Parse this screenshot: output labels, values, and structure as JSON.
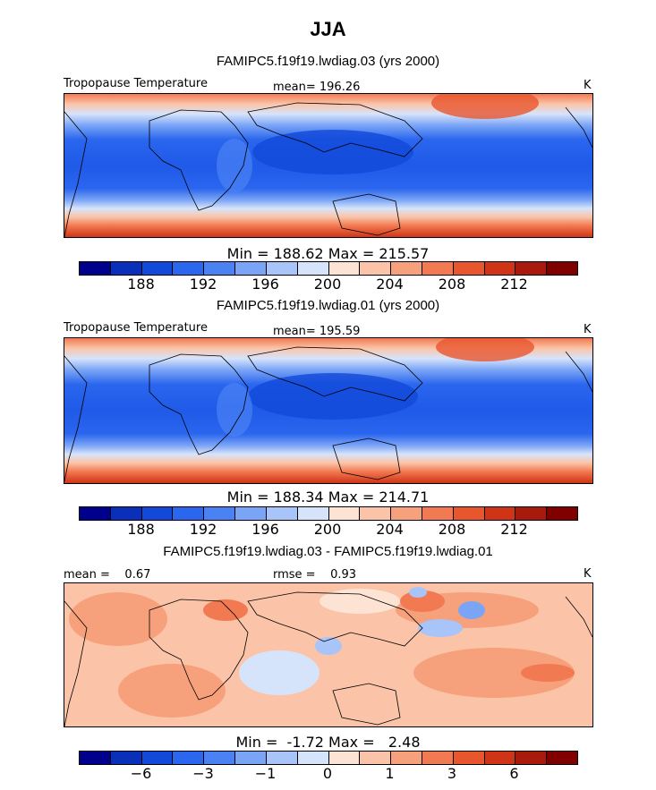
{
  "season": "JJA",
  "panels": [
    {
      "title": "FAMIPC5.f19f19.lwdiag.03 (yrs 2000)",
      "var_label": "Tropopause Temperature",
      "stat_left": "",
      "stat_mid": "mean= 196.26",
      "units": "K",
      "minmax": "Min = 188.62 Max = 215.57",
      "kind": "abs"
    },
    {
      "title": "FAMIPC5.f19f19.lwdiag.01 (yrs 2000)",
      "var_label": "Tropopause Temperature",
      "stat_left": "",
      "stat_mid": "mean= 195.59",
      "units": "K",
      "minmax": "Min = 188.34 Max = 214.71",
      "kind": "abs"
    },
    {
      "title": "FAMIPC5.f19f19.lwdiag.03 - FAMIPC5.f19f19.lwdiag.01",
      "var_label": "",
      "stat_left": "mean =    0.67",
      "stat_mid": "rmse =    0.93",
      "units": "K",
      "minmax": "Min =  -1.72 Max =   2.48",
      "kind": "diff"
    }
  ],
  "chart_data": [
    {
      "type": "heatmap",
      "title": "FAMIPC5.f19f19.lwdiag.03 (yrs 2000)",
      "variable": "Tropopause Temperature",
      "units": "K",
      "mean": 196.26,
      "min": 188.62,
      "max": 215.57,
      "colorbar_ticks": [
        188,
        192,
        196,
        200,
        204,
        208,
        212
      ]
    },
    {
      "type": "heatmap",
      "title": "FAMIPC5.f19f19.lwdiag.01 (yrs 2000)",
      "variable": "Tropopause Temperature",
      "units": "K",
      "mean": 195.59,
      "min": 188.34,
      "max": 214.71,
      "colorbar_ticks": [
        188,
        192,
        196,
        200,
        204,
        208,
        212
      ]
    },
    {
      "type": "heatmap",
      "title": "FAMIPC5.f19f19.lwdiag.03 - FAMIPC5.f19f19.lwdiag.01",
      "units": "K",
      "mean": 0.67,
      "rmse": 0.93,
      "min": -1.72,
      "max": 2.48,
      "colorbar_ticks": [
        -6,
        -3,
        -1,
        0,
        1,
        3,
        6
      ]
    }
  ],
  "colorbar": {
    "colors": [
      "#00008c",
      "#0a2fb8",
      "#1249d8",
      "#2a66ee",
      "#4a82f4",
      "#7aa4f6",
      "#a8c4f8",
      "#d6e4fb",
      "#fde3d3",
      "#fbc4a8",
      "#f7a07c",
      "#f27a52",
      "#e8562e",
      "#cf3417",
      "#a81a0c",
      "#800000"
    ],
    "ticks_abs": [
      "188",
      "192",
      "196",
      "200",
      "204",
      "208",
      "212"
    ],
    "ticks_diff": [
      "−6",
      "−3",
      "−1",
      "0",
      "1",
      "3",
      "6"
    ]
  }
}
